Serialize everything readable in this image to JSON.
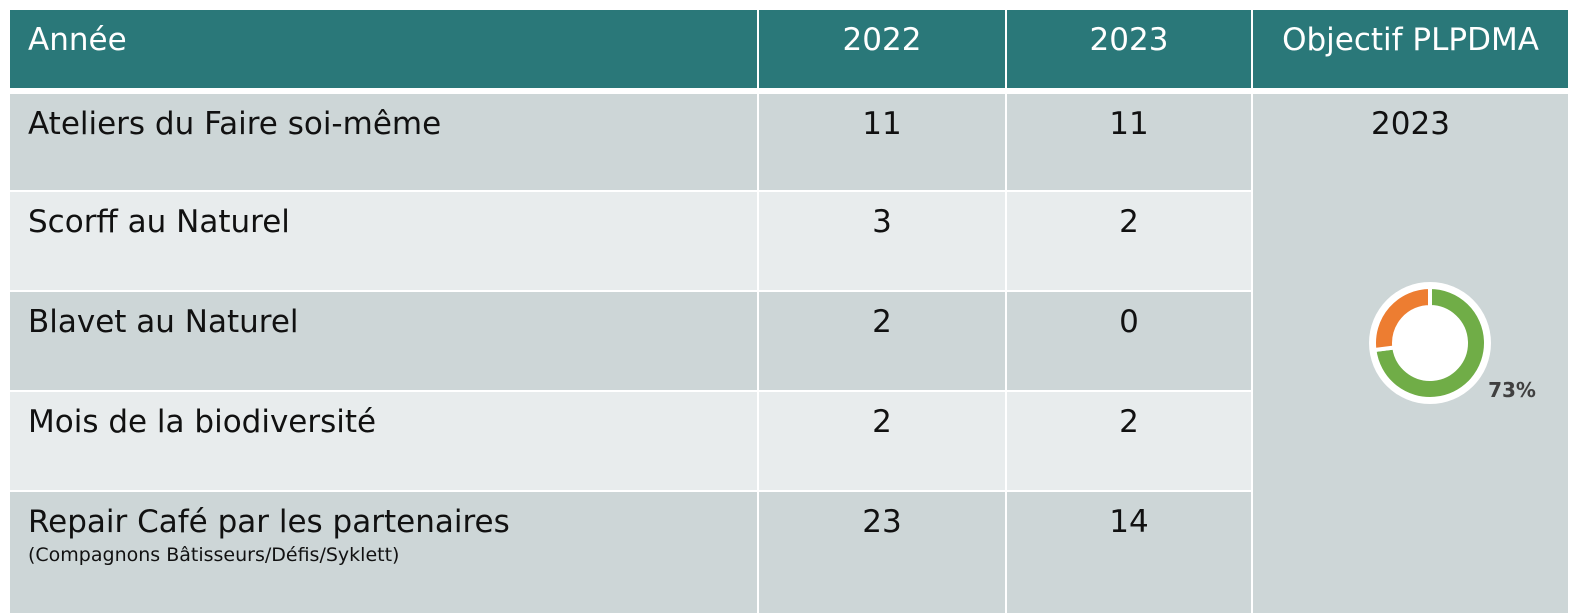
{
  "table": {
    "header": [
      "Année",
      "2022",
      "2023",
      "Objectif PLPDMA"
    ],
    "rows": [
      [
        "Ateliers du Faire soi-même",
        11,
        11
      ],
      [
        "Scorff au Naturel",
        3,
        2
      ],
      [
        "Blavet au Naturel",
        2,
        0
      ],
      [
        "Mois de la biodiversité",
        2,
        2
      ],
      [
        "Repair Café par les partenaires",
        23,
        14
      ]
    ],
    "row_note": "(Compagnons Bâtisseurs/Défis/Syklett)",
    "objective_year": "2023"
  },
  "donut": {
    "value": 73,
    "value_label": "73%",
    "color": "#70ad47",
    "rest_color": "#ed7d31"
  }
}
